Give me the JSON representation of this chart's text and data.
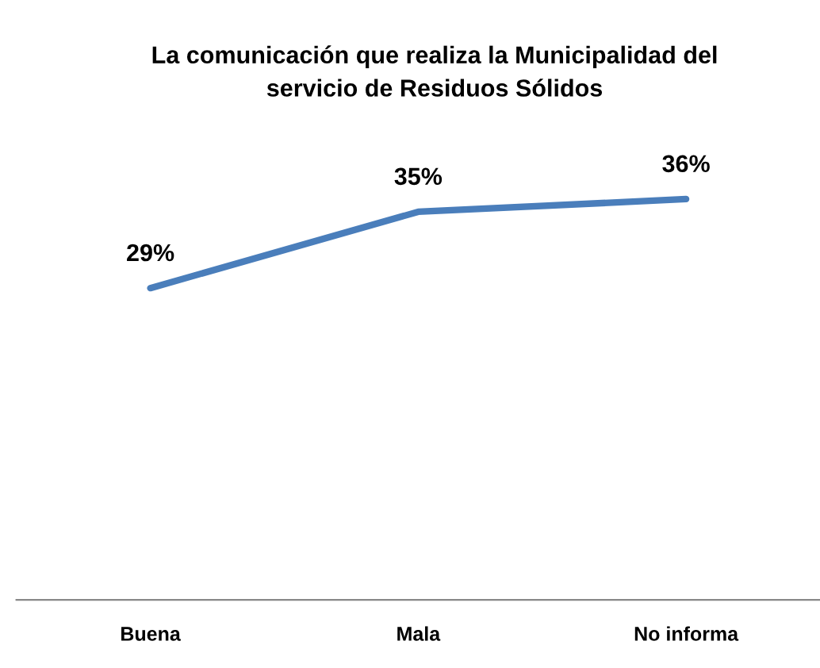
{
  "chart_data": {
    "type": "line",
    "title": "La comunicación que realiza la Municipalidad del\nservicio de Residuos Sólidos",
    "categories": [
      "Buena",
      "Mala",
      "No informa"
    ],
    "series": [
      {
        "color": "#4a7ebb",
        "values": [
          29,
          35,
          36
        ],
        "value_labels": [
          "29%",
          "35%",
          "36%"
        ]
      }
    ],
    "grid": false,
    "legend": false,
    "marker": "none",
    "line_style": "solid"
  }
}
